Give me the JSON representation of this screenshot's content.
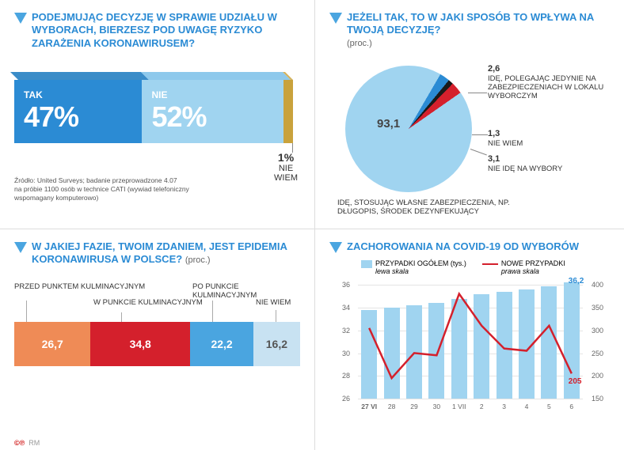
{
  "panel_tl": {
    "title": "PODEJMUJĄC DECYZJĘ W SPRAWIE UDZIAŁU W WYBORACH, BIERZESZ POD UWAGĘ RYZYKO ZARAŻENIA KORONAWIRUSEM?",
    "segments": [
      {
        "label": "TAK",
        "value": 47,
        "display": "47%",
        "color": "#2b8bd4",
        "top_color": "#3a8cc8"
      },
      {
        "label": "NIE",
        "value": 52,
        "display": "52%",
        "color": "#a0d4f0",
        "top_color": "#8ec9ec"
      },
      {
        "label": "NIE WIEM",
        "value": 1,
        "display": "1%",
        "color": "#c9a23c",
        "top_color": "#d4b25c"
      }
    ],
    "nw_display": "1%",
    "nw_label": "NIE\nWIEM",
    "source": "Źródło: United Surveys; badanie przeprowadzone 4.07\nna próbie 1100 osób w technice CATI (wywiad telefoniczny\nwspomagany komputerowo)"
  },
  "panel_tr": {
    "title": "JEŻELI TAK, TO W JAKI SPOSÓB TO WPŁYWA NA TWOJĄ DECYZJĘ?",
    "subtitle": "(proc.)",
    "slices": [
      {
        "label": "IDĘ, STOSUJĄC WŁASNE ZABEZPIECZENIA, NP. DŁUGOPIS, ŚRODEK DEZYNFEKUJĄCY",
        "value": 93.1,
        "color": "#a0d4f0"
      },
      {
        "label": "IDĘ, POLEGAJĄC JEDYNIE NA ZABEZPIECZENIACH W LOKALU WYBORCZYM",
        "value": 2.6,
        "color": "#2b8bd4"
      },
      {
        "label": "NIE WIEM",
        "value": 1.3,
        "color": "#1a1a1a"
      },
      {
        "label": "NIE IDĘ NA WYBORY",
        "value": 3.1,
        "color": "#d4202c"
      }
    ],
    "main_value": "93,1",
    "leg1_v": "2,6",
    "leg1_t": "IDĘ, POLEGAJĄC JEDYNIE NA ZABEZPIECZENIACH W LOKALU WYBORCZYM",
    "leg2_v": "1,3",
    "leg2_t": "NIE WIEM",
    "leg3_v": "3,1",
    "leg3_t": "NIE IDĘ NA WYBORY",
    "leg4_t": "IDĘ, STOSUJĄC WŁASNE ZABEZPIECZENIA, NP. DŁUGOPIS, ŚRODEK DEZYNFEKUJĄCY"
  },
  "panel_bl": {
    "title": "W JAKIEJ FAZIE, TWOIM ZDANIEM, JEST EPIDEMIA KORONAWIRUSA W POLSCE?",
    "subtitle": "(proc.)",
    "segments": [
      {
        "label": "PRZED PUNKTEM KULMINACYJNYM",
        "value": 26.7,
        "display": "26,7",
        "color": "#ef8b56"
      },
      {
        "label": "W PUNKCIE KULMINACYJNYM",
        "value": 34.8,
        "display": "34,8",
        "color": "#d4202c"
      },
      {
        "label": "PO PUNKCIE KULMINACYJNYM",
        "value": 22.2,
        "display": "22,2",
        "color": "#4aa5e0"
      },
      {
        "label": "NIE WIEM",
        "value": 16.2,
        "display": "16,2",
        "color": "#c8e2f2",
        "text_color": "#555"
      }
    ]
  },
  "panel_br": {
    "title": "ZACHOROWANIA NA COVID-19 OD WYBORÓW",
    "legend_bar": "PRZYPADKI OGÓŁEM (tys.)",
    "legend_bar_sub": "lewa skala",
    "legend_line": "NOWE PRZYPADKI",
    "legend_line_sub": "prawa skala",
    "x_labels": [
      "27 VI",
      "28",
      "29",
      "30",
      "1 VII",
      "2",
      "3",
      "4",
      "5",
      "6"
    ],
    "bars": [
      33.8,
      34.0,
      34.2,
      34.4,
      34.8,
      35.2,
      35.4,
      35.6,
      35.9,
      36.2
    ],
    "line": [
      305,
      195,
      250,
      245,
      380,
      310,
      260,
      255,
      310,
      205
    ],
    "y_left": {
      "min": 26,
      "max": 36,
      "step": 2,
      "ticks": [
        26,
        28,
        30,
        32,
        34,
        36
      ]
    },
    "y_right": {
      "min": 150,
      "max": 400,
      "step": 50,
      "ticks": [
        150,
        200,
        250,
        300,
        350,
        400
      ]
    },
    "bar_color": "#a0d4f0",
    "line_color": "#d4202c",
    "last_bar_label": "36,2",
    "last_line_label": "205"
  },
  "footer_rm": "RM"
}
